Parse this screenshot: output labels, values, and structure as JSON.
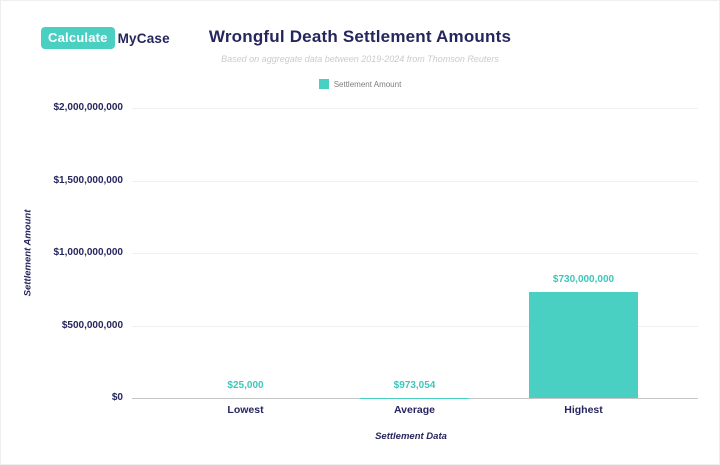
{
  "logo": {
    "primary": "Calculate",
    "secondary": "MyCase"
  },
  "header": {
    "title": "Wrongful Death Settlement Amounts",
    "subtitle": "Based on aggregate data between 2019-2024 from Thomson Reuters"
  },
  "legend": {
    "label": "Settlement Amount"
  },
  "axes": {
    "x_title": "Settlement Data",
    "y_title": "Settlement Amount"
  },
  "colors": {
    "accent_teal": "#4ACFC3",
    "value_label_teal": "#3FC6BA",
    "navy": "#26265E",
    "subtitle_gray": "#CBCBCB",
    "legend_text_gray": "#7D7D7D",
    "gridline_gray": "#F0F0F0",
    "axis_line_gray": "#C4C4C4"
  },
  "chart_data": {
    "type": "bar",
    "title": "Wrongful Death Settlement Amounts",
    "subtitle": "Based on aggregate data between 2019-2024 from Thomson Reuters",
    "categories": [
      "Lowest",
      "Average",
      "Highest"
    ],
    "series": [
      {
        "name": "Settlement Amount",
        "values": [
          25000,
          973054,
          730000000
        ]
      }
    ],
    "value_labels": [
      "$25,000",
      "$973,054",
      "$730,000,000"
    ],
    "xlabel": "Settlement Data",
    "ylabel": "Settlement Amount",
    "ylim": [
      0,
      2000000000
    ],
    "ytick_labels": [
      "$0",
      "$500,000,000",
      "$1,000,000,000",
      "$1,500,000,000",
      "$2,000,000,000"
    ],
    "grid": true,
    "legend_position": "top",
    "bar_color": "#4ACFC3"
  }
}
